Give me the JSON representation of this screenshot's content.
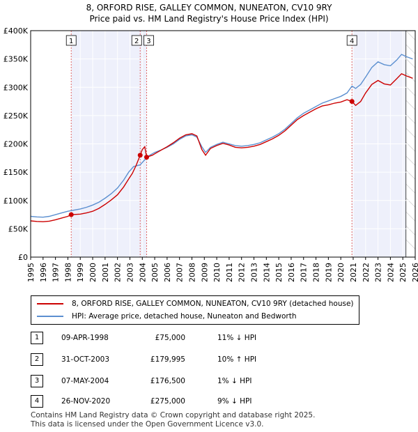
{
  "title_line1": "8, ORFORD RISE, GALLEY COMMON, NUNEATON, CV10 9RY",
  "title_line2": "Price paid vs. HM Land Registry's House Price Index (HPI)",
  "chart_data": {
    "type": "line",
    "xlim": [
      1995,
      2026
    ],
    "ylim": [
      0,
      400000
    ],
    "x_ticks": [
      1995,
      1996,
      1997,
      1998,
      1999,
      2000,
      2001,
      2002,
      2003,
      2004,
      2005,
      2006,
      2007,
      2008,
      2009,
      2010,
      2011,
      2012,
      2013,
      2014,
      2015,
      2016,
      2017,
      2018,
      2019,
      2020,
      2021,
      2022,
      2023,
      2024,
      2025,
      2026
    ],
    "y_ticks": [
      0,
      50000,
      100000,
      150000,
      200000,
      250000,
      300000,
      350000,
      400000
    ],
    "y_tick_labels": [
      "£0",
      "£50K",
      "£100K",
      "£150K",
      "£200K",
      "£250K",
      "£300K",
      "£350K",
      "£400K"
    ],
    "projection_start": 2025.25,
    "series": [
      {
        "name": "8, ORFORD RISE, GALLEY COMMON, NUNEATON, CV10 9RY (detached house)",
        "color": "#cc0000",
        "points": [
          [
            1995.0,
            64000
          ],
          [
            1995.5,
            63000
          ],
          [
            1996.0,
            62500
          ],
          [
            1996.5,
            63500
          ],
          [
            1997.0,
            66000
          ],
          [
            1997.5,
            69000
          ],
          [
            1998.0,
            72000
          ],
          [
            1998.27,
            75000
          ],
          [
            1999.0,
            76000
          ],
          [
            1999.5,
            78000
          ],
          [
            2000.0,
            81000
          ],
          [
            2000.5,
            86000
          ],
          [
            2001.0,
            93000
          ],
          [
            2001.5,
            101000
          ],
          [
            2002.0,
            110000
          ],
          [
            2002.5,
            124000
          ],
          [
            2002.9,
            138000
          ],
          [
            2003.2,
            148000
          ],
          [
            2003.5,
            162000
          ],
          [
            2003.83,
            179995
          ],
          [
            2004.0,
            190000
          ],
          [
            2004.2,
            195000
          ],
          [
            2004.35,
            176500
          ],
          [
            2004.8,
            180000
          ],
          [
            2005.2,
            185000
          ],
          [
            2005.6,
            190000
          ],
          [
            2006.0,
            195000
          ],
          [
            2006.5,
            202000
          ],
          [
            2007.0,
            210000
          ],
          [
            2007.5,
            216000
          ],
          [
            2008.0,
            218000
          ],
          [
            2008.4,
            214000
          ],
          [
            2008.8,
            190000
          ],
          [
            2009.1,
            180000
          ],
          [
            2009.5,
            192000
          ],
          [
            2010.0,
            197000
          ],
          [
            2010.5,
            201000
          ],
          [
            2011.0,
            198000
          ],
          [
            2011.5,
            194000
          ],
          [
            2012.0,
            193000
          ],
          [
            2012.5,
            194000
          ],
          [
            2013.0,
            196000
          ],
          [
            2013.5,
            199000
          ],
          [
            2014.0,
            204000
          ],
          [
            2014.5,
            209000
          ],
          [
            2015.0,
            215000
          ],
          [
            2015.5,
            223000
          ],
          [
            2016.0,
            233000
          ],
          [
            2016.5,
            243000
          ],
          [
            2017.0,
            250000
          ],
          [
            2017.5,
            256000
          ],
          [
            2018.0,
            262000
          ],
          [
            2018.5,
            267000
          ],
          [
            2019.0,
            269000
          ],
          [
            2019.5,
            272000
          ],
          [
            2020.0,
            274000
          ],
          [
            2020.5,
            278000
          ],
          [
            2020.9,
            275000
          ],
          [
            2021.2,
            268000
          ],
          [
            2021.6,
            275000
          ],
          [
            2022.0,
            290000
          ],
          [
            2022.5,
            305000
          ],
          [
            2023.0,
            312000
          ],
          [
            2023.5,
            306000
          ],
          [
            2024.0,
            304000
          ],
          [
            2024.5,
            315000
          ],
          [
            2024.9,
            324000
          ],
          [
            2025.3,
            320000
          ],
          [
            2025.8,
            316000
          ]
        ]
      },
      {
        "name": "HPI: Average price, detached house, Nuneaton and Bedworth",
        "color": "#5b8fd0",
        "points": [
          [
            1995.0,
            72000
          ],
          [
            1995.5,
            71000
          ],
          [
            1996.0,
            70500
          ],
          [
            1996.5,
            72000
          ],
          [
            1997.0,
            75000
          ],
          [
            1997.5,
            78000
          ],
          [
            1998.0,
            81000
          ],
          [
            1998.5,
            83000
          ],
          [
            1999.0,
            85000
          ],
          [
            1999.5,
            88000
          ],
          [
            2000.0,
            92000
          ],
          [
            2000.5,
            97000
          ],
          [
            2001.0,
            104000
          ],
          [
            2001.5,
            112000
          ],
          [
            2002.0,
            122000
          ],
          [
            2002.5,
            136000
          ],
          [
            2002.9,
            150000
          ],
          [
            2003.3,
            160000
          ],
          [
            2003.83,
            163000
          ],
          [
            2004.2,
            172000
          ],
          [
            2004.6,
            180000
          ],
          [
            2005.0,
            185000
          ],
          [
            2005.5,
            189000
          ],
          [
            2006.0,
            194000
          ],
          [
            2006.5,
            200000
          ],
          [
            2007.0,
            208000
          ],
          [
            2007.5,
            214000
          ],
          [
            2008.0,
            216000
          ],
          [
            2008.4,
            212000
          ],
          [
            2008.8,
            195000
          ],
          [
            2009.1,
            185000
          ],
          [
            2009.5,
            194000
          ],
          [
            2010.0,
            199000
          ],
          [
            2010.5,
            203000
          ],
          [
            2011.0,
            200000
          ],
          [
            2011.5,
            197000
          ],
          [
            2012.0,
            196000
          ],
          [
            2012.5,
            197000
          ],
          [
            2013.0,
            199000
          ],
          [
            2013.5,
            202000
          ],
          [
            2014.0,
            207000
          ],
          [
            2014.5,
            212000
          ],
          [
            2015.0,
            218000
          ],
          [
            2015.5,
            226000
          ],
          [
            2016.0,
            236000
          ],
          [
            2016.5,
            246000
          ],
          [
            2017.0,
            254000
          ],
          [
            2017.5,
            260000
          ],
          [
            2018.0,
            266000
          ],
          [
            2018.5,
            272000
          ],
          [
            2019.0,
            276000
          ],
          [
            2019.5,
            280000
          ],
          [
            2020.0,
            284000
          ],
          [
            2020.5,
            290000
          ],
          [
            2020.9,
            302000
          ],
          [
            2021.2,
            298000
          ],
          [
            2021.6,
            305000
          ],
          [
            2022.0,
            318000
          ],
          [
            2022.5,
            335000
          ],
          [
            2023.0,
            345000
          ],
          [
            2023.5,
            340000
          ],
          [
            2024.0,
            338000
          ],
          [
            2024.5,
            348000
          ],
          [
            2024.9,
            358000
          ],
          [
            2025.3,
            354000
          ],
          [
            2025.8,
            350000
          ]
        ]
      }
    ],
    "sales": [
      {
        "label": "1",
        "x": 1998.27,
        "y": 75000
      },
      {
        "label": "2",
        "x": 2003.83,
        "y": 179995
      },
      {
        "label": "3",
        "x": 2004.35,
        "y": 176500
      },
      {
        "label": "4",
        "x": 2020.9,
        "y": 275000
      }
    ]
  },
  "legend": {
    "property_label": "8, ORFORD RISE, GALLEY COMMON, NUNEATON, CV10 9RY (detached house)",
    "hpi_label": "HPI: Average price, detached house, Nuneaton and Bedworth",
    "property_color": "#cc0000",
    "hpi_color": "#5b8fd0"
  },
  "transactions": [
    {
      "num": "1",
      "date": "09-APR-1998",
      "price": "£75,000",
      "hpi": "11% ↓ HPI"
    },
    {
      "num": "2",
      "date": "31-OCT-2003",
      "price": "£179,995",
      "hpi": "10% ↑ HPI"
    },
    {
      "num": "3",
      "date": "07-MAY-2004",
      "price": "£176,500",
      "hpi": "1% ↓ HPI"
    },
    {
      "num": "4",
      "date": "26-NOV-2020",
      "price": "£275,000",
      "hpi": "9% ↓ HPI"
    }
  ],
  "footer": {
    "line1": "Contains HM Land Registry data © Crown copyright and database right 2025.",
    "line2": "This data is licensed under the Open Government Licence v3.0."
  }
}
